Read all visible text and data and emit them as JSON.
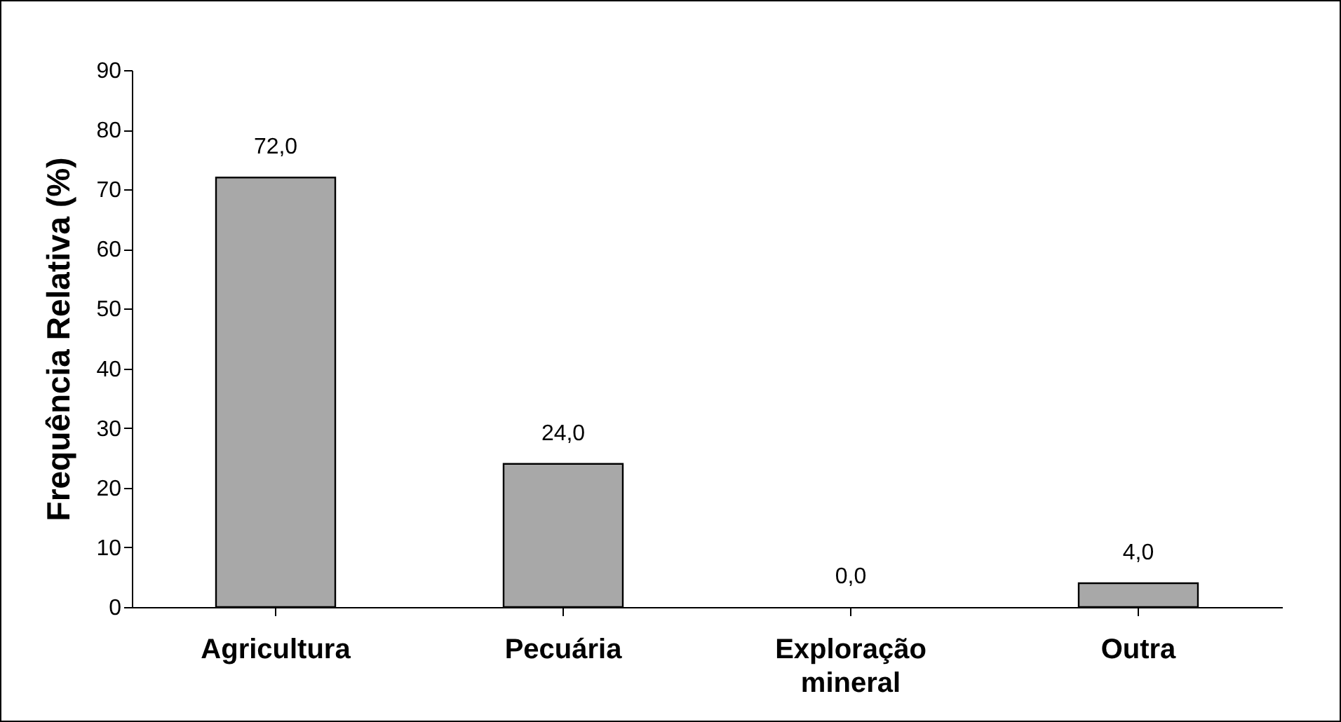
{
  "chart_data": {
    "type": "bar",
    "ylabel": "Frequência Relativa (%)",
    "categories": [
      "Agricultura",
      "Pecuária",
      "Exploração mineral",
      "Outra"
    ],
    "values": [
      72,
      24,
      0,
      4
    ],
    "value_labels": [
      "72,0",
      "24,0",
      "0,0",
      "4,0"
    ],
    "color": "#a8a8a8",
    "ylim": [
      0,
      90
    ],
    "yticks": [
      0,
      10,
      20,
      30,
      40,
      50,
      60,
      70,
      80,
      90
    ],
    "grid": false
  }
}
